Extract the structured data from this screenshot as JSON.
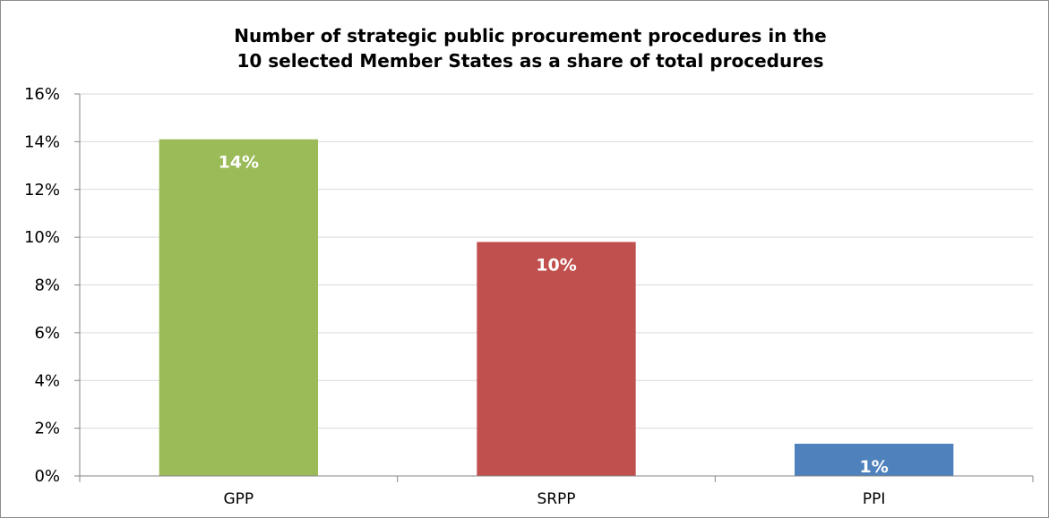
{
  "chart_data": {
    "type": "bar",
    "title": "Number of strategic public procurement procedures in the 10 selected Member States as a share of total procedures",
    "title_lines": [
      "Number of strategic public procurement procedures in the",
      "10 selected Member States as a share of total procedures"
    ],
    "categories": [
      "GPP",
      "SRPP",
      "PPI"
    ],
    "values": [
      14.1,
      9.8,
      1.35
    ],
    "data_labels": [
      "14%",
      "10%",
      "1%"
    ],
    "colors": [
      "#9bbb59",
      "#c0504d",
      "#4f81bd"
    ],
    "xlabel": "",
    "ylabel": "",
    "ylim": [
      0,
      16
    ],
    "yticks": [
      0,
      2,
      4,
      6,
      8,
      10,
      12,
      14,
      16
    ],
    "ytick_labels": [
      "0%",
      "2%",
      "4%",
      "6%",
      "8%",
      "10%",
      "12%",
      "14%",
      "16%"
    ],
    "grid": true,
    "legend": "none"
  }
}
